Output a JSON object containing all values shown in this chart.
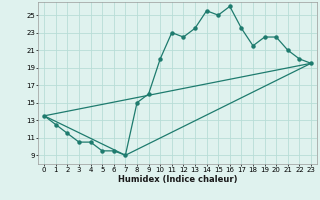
{
  "xlabel": "Humidex (Indice chaleur)",
  "line_color": "#1e7b6e",
  "bg_color": "#dff2ee",
  "grid_color": "#b8ddd7",
  "xlim": [
    -0.5,
    23.5
  ],
  "ylim": [
    8.0,
    26.5
  ],
  "xticks": [
    0,
    1,
    2,
    3,
    4,
    5,
    6,
    7,
    8,
    9,
    10,
    11,
    12,
    13,
    14,
    15,
    16,
    17,
    18,
    19,
    20,
    21,
    22,
    23
  ],
  "yticks": [
    9,
    11,
    13,
    15,
    17,
    19,
    21,
    23,
    25
  ],
  "series1_x": [
    0,
    1,
    2,
    3,
    4,
    5,
    6,
    7,
    8,
    9,
    10,
    11,
    12,
    13,
    14,
    15,
    16,
    17,
    18,
    19,
    20,
    21,
    22,
    23
  ],
  "series1_y": [
    13.5,
    12.5,
    11.5,
    10.5,
    10.5,
    9.5,
    9.5,
    9.0,
    15.0,
    16.0,
    20.0,
    23.0,
    22.5,
    23.5,
    25.5,
    25.0,
    26.0,
    23.5,
    21.5,
    22.5,
    22.5,
    21.0,
    20.0,
    19.5
  ],
  "series2_x": [
    0,
    23
  ],
  "series2_y": [
    13.5,
    19.5
  ],
  "series3_x": [
    0,
    7,
    23
  ],
  "series3_y": [
    13.5,
    9.0,
    19.5
  ],
  "marker_size": 2.2,
  "linewidth": 0.9,
  "tick_fontsize": 5.0,
  "xlabel_fontsize": 6.0
}
